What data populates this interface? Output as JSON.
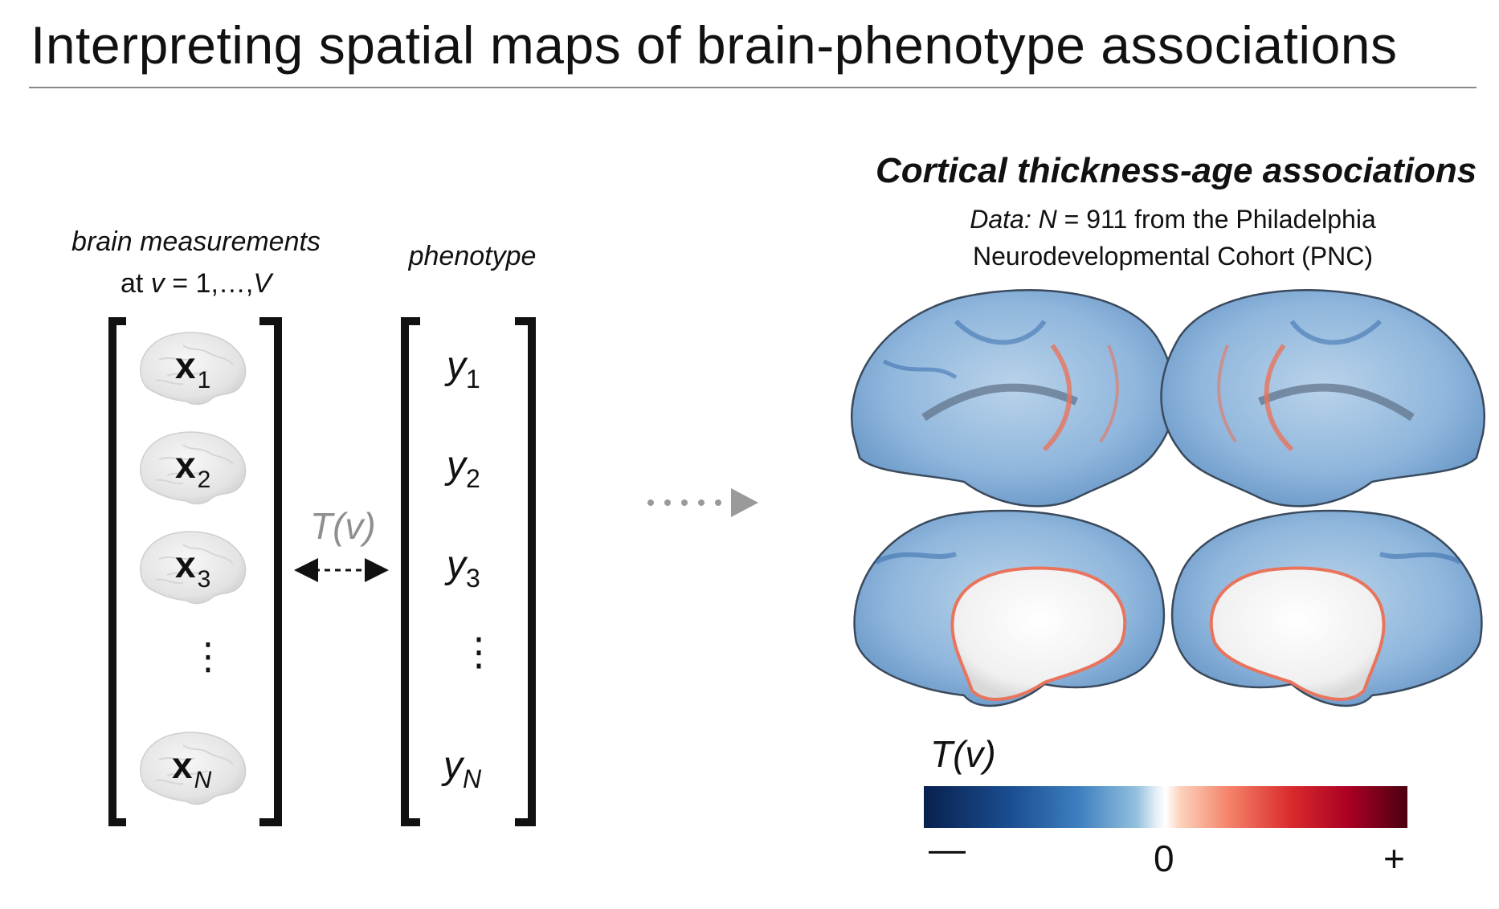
{
  "title": "Interpreting spatial maps of brain-phenotype associations",
  "left_panel": {
    "brain_label_line1": "brain measurements",
    "brain_label_line2_prefix": "at ",
    "brain_label_v": "v",
    "brain_label_line2_mid": " = 1,…,",
    "brain_label_V": "V",
    "phenotype_label": "phenotype",
    "x_symbol": "x",
    "x_subscripts": [
      "1",
      "2",
      "3",
      "N"
    ],
    "y_symbol": "y",
    "y_subscripts": [
      "1",
      "2",
      "3",
      "N"
    ],
    "vdots": "⋮",
    "arrow_label": "T(v)"
  },
  "right_panel": {
    "title": "Cortical thickness-age associations",
    "data_prefix": "Data: ",
    "data_N": "N",
    "data_rest": " = 911 from the Philadelphia",
    "data_line2": "Neurodevelopmental Cohort (PNC)",
    "colorbar": {
      "title": "T(v)",
      "ticks": [
        "—",
        "0",
        "+"
      ],
      "colors": [
        "#08204e",
        "#3d7fbf",
        "#ffffff",
        "#f5836a",
        "#a90024",
        "#4a0010"
      ]
    }
  },
  "icons": {
    "brain": "brain-icon",
    "flow_arrow": "dotted-arrow-icon",
    "double_arrow": "double-arrow-icon"
  }
}
